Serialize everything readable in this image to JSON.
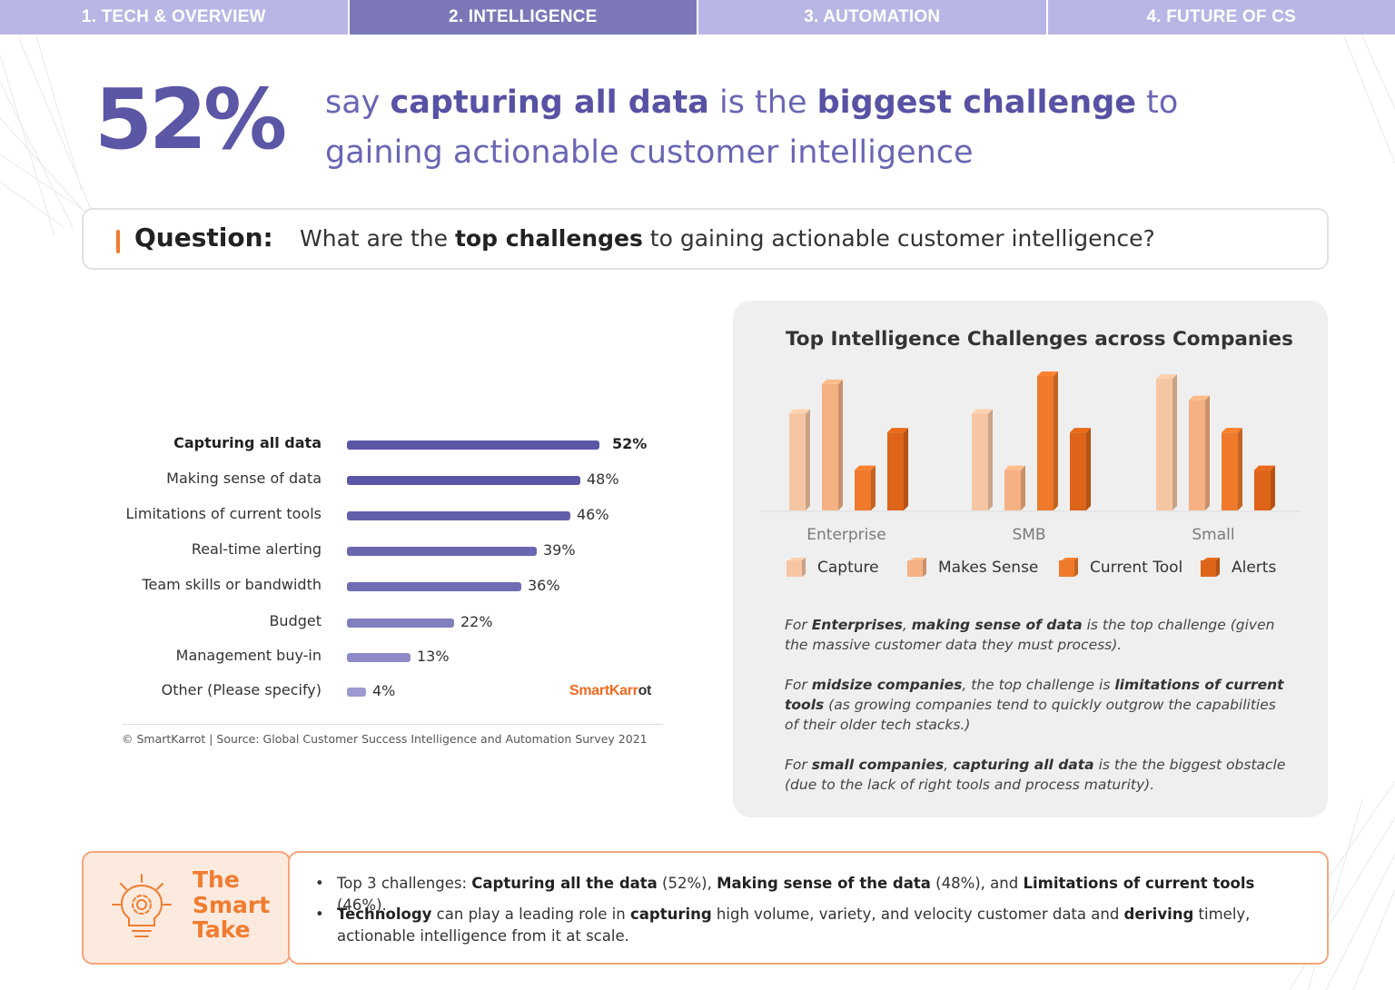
{
  "nav": {
    "tabs": [
      {
        "label": "1. TECH & OVERVIEW",
        "active": false
      },
      {
        "label": "2. INTELLIGENCE",
        "active": true
      },
      {
        "label": "3. AUTOMATION",
        "active": false
      },
      {
        "label": "4. FUTURE OF CS",
        "active": false
      }
    ]
  },
  "headline": {
    "stat": "52%",
    "parts": [
      "say ",
      "capturing all data",
      " is the ",
      "biggest challenge",
      " to gaining actionable customer intelligence"
    ]
  },
  "question": {
    "label": "Question:",
    "parts": [
      "What are the ",
      "top challenges",
      " to gaining actionable customer intelligence?"
    ]
  },
  "bar_chart_footer": {
    "logo_part1": "SmartKarr",
    "logo_part2": "ot",
    "source": "© SmartKarrot | Source: Global Customer Success Intelligence and Automation Survey 2021"
  },
  "chart_data": [
    {
      "type": "bar",
      "orientation": "horizontal",
      "categories": [
        "Capturing all data",
        "Making sense of data",
        "Limitations of current tools",
        "Real-time alerting",
        "Team skills or bandwidth",
        "Budget",
        "Management buy-in",
        "Other (Please specify)"
      ],
      "values": [
        52,
        48,
        46,
        39,
        36,
        22,
        13,
        4
      ],
      "value_labels": [
        "52%",
        "48%",
        "46%",
        "39%",
        "36%",
        "22%",
        "13%",
        "4%"
      ],
      "unit": "%",
      "xlim": [
        0,
        52
      ],
      "colors": [
        "#5b56a6",
        "#5b56a6",
        "#625eaa",
        "#6a66b0",
        "#706cb4",
        "#827fc0",
        "#8e8bc8",
        "#9d9ad0"
      ],
      "highlight_index": 0
    },
    {
      "type": "bar",
      "title": "Top Intelligence Challenges across Companies",
      "categories": [
        "Enterprise",
        "SMB",
        "Small"
      ],
      "series": [
        {
          "name": "Capture",
          "color": "#f6c6a4",
          "values": [
            72,
            72,
            98
          ]
        },
        {
          "name": "Makes Sense",
          "color": "#f5b183",
          "values": [
            94,
            30,
            82
          ]
        },
        {
          "name": "Current Tool",
          "color": "#ef7a2c",
          "values": [
            30,
            100,
            58
          ]
        },
        {
          "name": "Alerts",
          "color": "#dd6418",
          "values": [
            58,
            58,
            30
          ]
        }
      ],
      "ylim": [
        0,
        100
      ],
      "grid": false,
      "legend_position": "bottom",
      "notes": "bars have no printed values; heights are relative estimates"
    }
  ],
  "panel": {
    "title": "Top Intelligence Challenges across Companies",
    "notes": [
      {
        "parts": [
          [
            "For ",
            false
          ],
          [
            "Enterprises",
            true
          ],
          [
            ", ",
            false
          ],
          [
            "making sense of data",
            true
          ],
          [
            " is the top challenge (given the massive customer data they must process).",
            false
          ]
        ]
      },
      {
        "parts": [
          [
            "For ",
            false
          ],
          [
            "midsize companies",
            true
          ],
          [
            ", the top challenge is ",
            false
          ],
          [
            "limitations of current tools",
            true
          ],
          [
            " (as growing companies tend to quickly outgrow the capabilities of their older tech stacks.)",
            false
          ]
        ]
      },
      {
        "parts": [
          [
            "For ",
            false
          ],
          [
            "small companies",
            true
          ],
          [
            ", ",
            false
          ],
          [
            "capturing all data",
            true
          ],
          [
            " is the the biggest obstacle (due to the lack of right tools and process maturity).",
            false
          ]
        ]
      }
    ]
  },
  "smart_take": {
    "title": "The Smart Take",
    "bullets": [
      {
        "parts": [
          [
            "Top 3 challenges: ",
            false
          ],
          [
            "Capturing all the data",
            true
          ],
          [
            " (52%), ",
            false
          ],
          [
            "Making sense of the data",
            true
          ],
          [
            " (48%), and ",
            false
          ],
          [
            "Limitations of current tools",
            true
          ],
          [
            " (46%).",
            false
          ]
        ]
      },
      {
        "parts": [
          [
            "Technology",
            true
          ],
          [
            " can play a leading role in ",
            false
          ],
          [
            "capturing",
            true
          ],
          [
            " high volume, variety, and velocity customer data and ",
            false
          ],
          [
            "deriving",
            true
          ],
          [
            " timely, actionable intelligence from it at scale.",
            false
          ]
        ]
      }
    ]
  }
}
